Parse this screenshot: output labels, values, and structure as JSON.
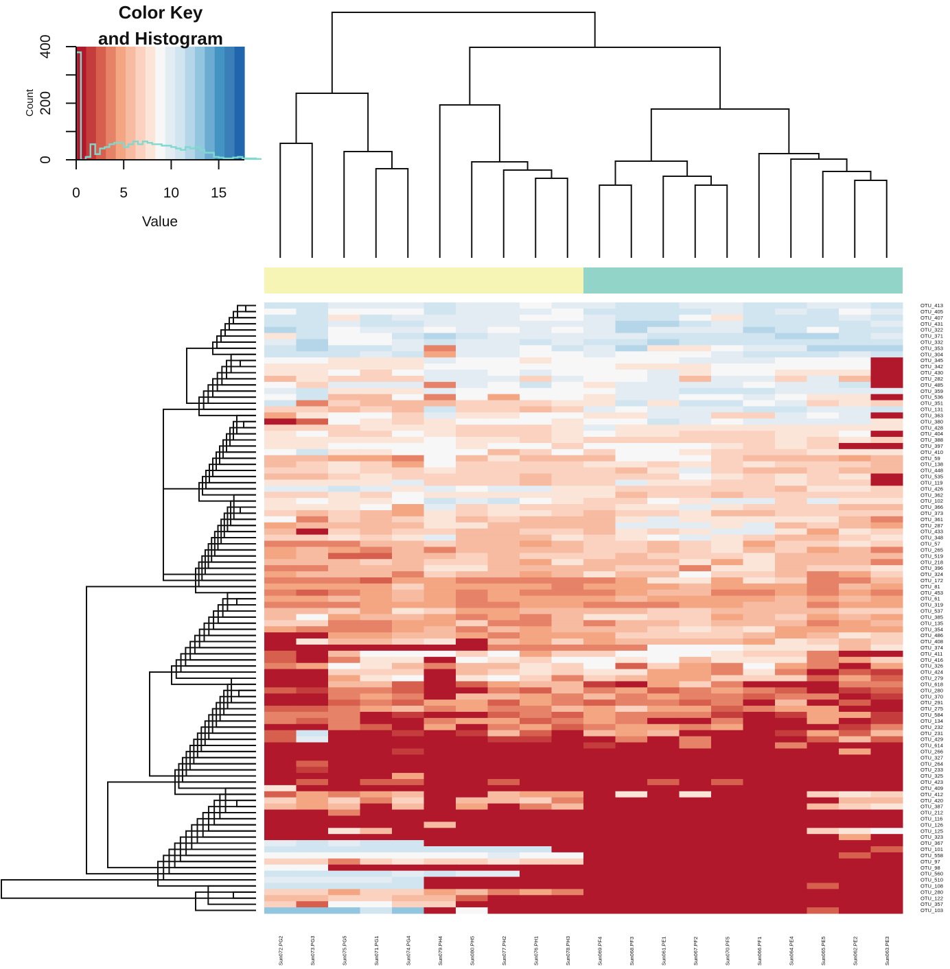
{
  "chart_data": {
    "type": "heatmap",
    "title": "",
    "color_key": {
      "title_line1": "Color Key",
      "title_line2": "and Histogram",
      "xlabel": "Value",
      "ylabel": "Count",
      "x_ticks": [
        "0",
        "5",
        "10",
        "15"
      ],
      "x_tick_values": [
        0,
        5,
        10,
        15
      ],
      "y_ticks": [
        "0",
        "200",
        "400"
      ],
      "y_tick_values": [
        0,
        200,
        400
      ],
      "y_minor_ticks": [
        100,
        300
      ],
      "xlim": [
        0,
        17.7
      ],
      "ylim": [
        0,
        400
      ],
      "palette": [
        "#b2182b",
        "#c43c3c",
        "#d6604d",
        "#e58267",
        "#f4a582",
        "#f7bba1",
        "#fad2bf",
        "#fbe5d8",
        "#f7f7f7",
        "#e3ecf2",
        "#d1e5f0",
        "#b5d6e8",
        "#92c5de",
        "#6bacd0",
        "#4393c3",
        "#3a7fb8",
        "#2166ac"
      ],
      "histogram_color": "#7fd9cf",
      "histogram": {
        "bin_edges_start": 0,
        "bin_width": 0.5,
        "counts": [
          380,
          0,
          10,
          55,
          20,
          40,
          45,
          55,
          60,
          60,
          45,
          55,
          65,
          55,
          65,
          60,
          55,
          55,
          50,
          50,
          45,
          40,
          35,
          45,
          40,
          45,
          35,
          25,
          25,
          10,
          8,
          5,
          5,
          8,
          10,
          5,
          3,
          5,
          5,
          3
        ]
      }
    },
    "column_side_colors": {
      "group_1": "#f6f5b6",
      "group_2": "#92d5c8",
      "group_1_count": 10,
      "group_2_count": 10
    },
    "columns": [
      "Sun072.PG2",
      "Sun073.PG3",
      "Sun075.PG5",
      "Sun071.PG1",
      "Sun074.PG4",
      "Sun079.PH4",
      "Sun080.PH5",
      "Sun077.PH2",
      "Sun076.PH1",
      "Sun078.PH3",
      "Sun069.PF4",
      "Sun068.PF3",
      "Sun061.PE1",
      "Sun067.PF2",
      "Sun070.PF5",
      "Sun066.PF1",
      "Sun064.PE4",
      "Sun065.PE5",
      "Sun062.PE2",
      "Sun063.PE3"
    ],
    "rows": [
      "OTU_413",
      "OTU_405",
      "OTU_407",
      "OTU_431",
      "OTU_322",
      "OTU_371",
      "OTU_332",
      "OTU_353",
      "OTU_304",
      "OTU_345",
      "OTU_342",
      "OTU_430",
      "OTU_282",
      "OTU_485",
      "OTU_359",
      "OTU_536",
      "OTU_351",
      "OTU_131",
      "OTU_363",
      "OTU_380",
      "OTU_428",
      "OTU_404",
      "OTU_388",
      "OTU_397",
      "OTU_410",
      "OTU_59",
      "OTU_138",
      "OTU_448",
      "OTU_535",
      "OTU_119",
      "OTU_426",
      "OTU_362",
      "OTU_102",
      "OTU_366",
      "OTU_373",
      "OTU_361",
      "OTU_287",
      "OTU_433",
      "OTU_348",
      "OTU_57",
      "OTU_265",
      "OTU_519",
      "OTU_218",
      "OTU_396",
      "OTU_324",
      "OTU_172",
      "OTU_81",
      "OTU_453",
      "OTU_61",
      "OTU_319",
      "OTU_537",
      "OTU_385",
      "OTU_135",
      "OTU_354",
      "OTU_486",
      "OTU_408",
      "OTU_374",
      "OTU_411",
      "OTU_416",
      "OTU_326",
      "OTU_424",
      "OTU_279",
      "OTU_618",
      "OTU_280",
      "OTU_370",
      "OTU_291",
      "OTU_275",
      "OTU_584",
      "OTU_134",
      "OTU_232",
      "OTU_231",
      "OTU_429",
      "OTU_614",
      "OTU_266",
      "OTU_327",
      "OTU_264",
      "OTU_233",
      "OTU_325",
      "OTU_423",
      "OTU_409",
      "OTU_412",
      "OTU_420",
      "OTU_387",
      "OTU_212",
      "OTU_116",
      "OTU_126",
      "OTU_125",
      "OTU_323",
      "OTU_367",
      "OTU_101",
      "OTU_558",
      "OTU_97",
      "OTU_98",
      "OTU_560",
      "OTU_510",
      "OTU_108",
      "OTU_280",
      "OTU_122",
      "OTU_357",
      "OTU_103"
    ],
    "value_scale_note": "cell values are palette level indices 0-16 (0 = low/red, 8 = mid/white, 16 = high/blue), one hex digit-like char per column using 0-9 then a-g",
    "values": [
      "aa999a99899aa99aa99a",
      "8a888a9998aaaa9a9a89",
      "aa7a9999889aa87aaa9a",
      "aa9aa999999bba9aaaa9",
      "ba899898989b999ba8aa",
      "7a88aba99999aaaabba9",
      "9b889a99a9aabaaaaaaa",
      "abaa93998a9b77899bbb",
      "aaa9a4998898889aaa9a",
      "8877798878888999888",
      "7777788888877788888",
      "7786899898889788777",
      "5766699969889599695",
      "86999398a879999899a",
      "9a77798888899aaa9999",
      "8a55838488799889877",
      "a3655566677a7aa89676",
      "66565a665698999aa99a",
      "4788697788779966989",
      "028767888788a9899997",
      "66677766679777777777",
      "7866876667877666778",
      "77777877676666667676",
      "778888788688887676",
      "8a778885686887666777",
      "55443857555888655545",
      "56764866667767676665",
      "66766766666579655655",
      "5567666656666876767",
      "7777966656697766766",
      "99a979899776666657766",
      "66768777777566566666",
      "78778a9a8766879969777",
      "77784967666779766655",
      "65654767765667556666",
      "83656756555797777753",
      "45555775555999795654",
      "50656655665767997476",
      "66767955576789765567",
      "33355655456656746676",
      "454353555566567564535",
      "4522556566656667555546",
      "555656654755574755536",
      "3355577555566377566765",
      "45553655457558665346",
      "33324433333477476335",
      "44446444434445444354",
      "32345434333455334343",
      "44545434444544445454",
      "33344433443334455344",
      "55647644555566555566",
      "58455434357766456454",
      "66334463353556555345",
      "43334535455567674444",
      "00445543444666654576",
      "07556705464555547656",
      "00000003333388877757",
      "20588868466888766300",
      "20377087688785777346",
      "34875355768264384304",
      "00666056767744373021",
      "00478078636544666242",
      "00552024551046300033",
      "21332003253423432012",
      "00343055435343323301",
      "00232442432332305020",
      "2234534335464423440",
      "33301002324333101441",
      "32300344234300300401",
      "00320403423443400013",
      "2a0010152054500014253",
      "29000001100303000252",
      "00000000001003003000",
      "00001000000000000040",
      "0000000000000000000",
      "02000000000000000000",
      "01000000000000000000",
      "0000400000000000000",
      "02022002000020200000",
      "70000000000000000000",
      "2434500544070700067677",
      "6463605563000000005556",
      "5450504035000000056766",
      "00300000000000000000",
      "00000000000000000000",
      "00000500000000000000",
      "0075000000000000067870",
      "0000000000000000004000",
      "9a9aa000000000000000",
      "aaaaaaaaa00000000002",
      "8888888988000000002000",
      "66367667660000000000",
      "88000000000000000000",
      "aaaa9a990000000000000",
      "9999a00000000000000000",
      "aaaaa00000000000020000",
      "66466453430000000000",
      "55665520000000000000",
      "62886600000000000000",
      "cccac0800000000002000"
    ],
    "row_dendrogram": "hierarchical clustering of rows (left)",
    "column_dendrogram": "hierarchical clustering of columns (top)"
  }
}
